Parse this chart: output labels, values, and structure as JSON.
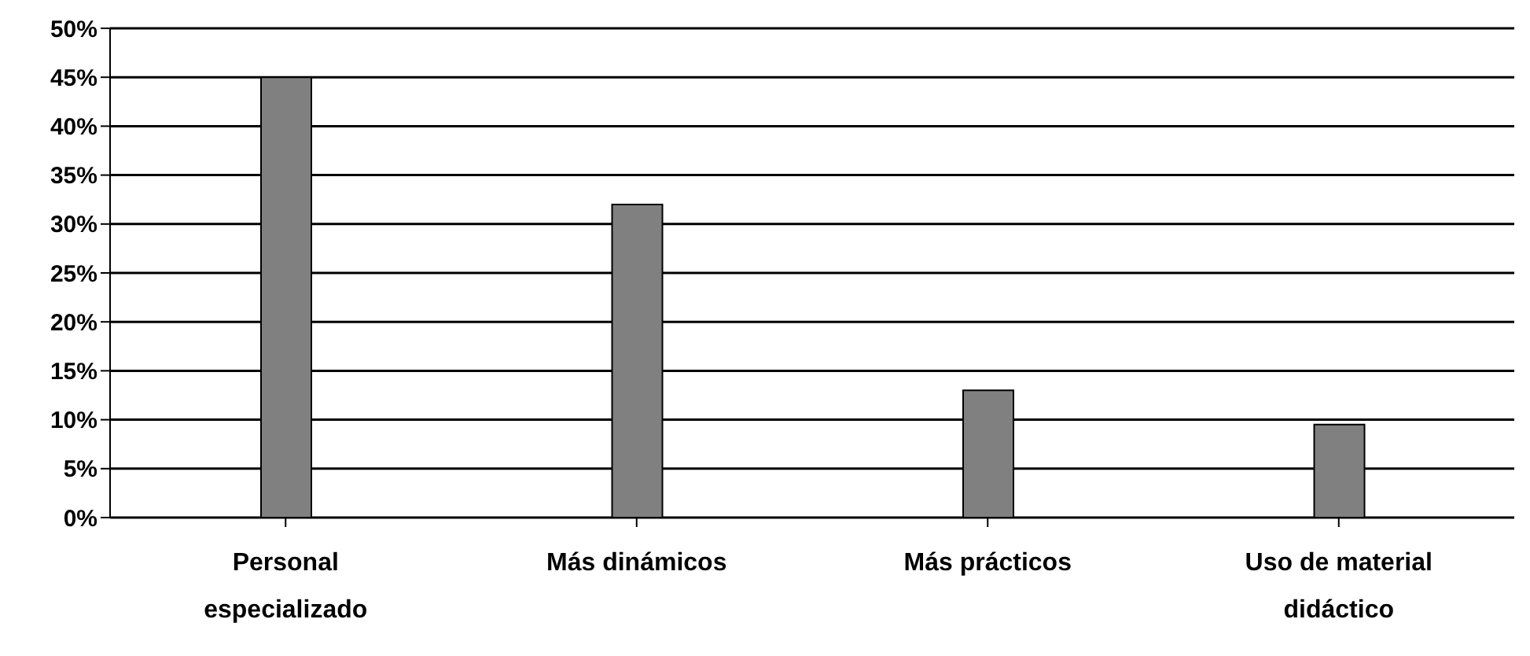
{
  "chart_data": {
    "type": "bar",
    "categories": [
      "Personal especializado",
      "Más dinámicos",
      "Más prácticos",
      "Uso de material didáctico"
    ],
    "values": [
      45,
      32,
      13,
      9.5
    ],
    "color": "#808080",
    "ylim": [
      0,
      50
    ],
    "yticks": [
      {
        "value": 0,
        "label": "0%"
      },
      {
        "value": 5,
        "label": "5%"
      },
      {
        "value": 10,
        "label": "10%"
      },
      {
        "value": 15,
        "label": "15%"
      },
      {
        "value": 20,
        "label": "20%"
      },
      {
        "value": 25,
        "label": "25%"
      },
      {
        "value": 30,
        "label": "30%"
      },
      {
        "value": 35,
        "label": "35%"
      },
      {
        "value": 40,
        "label": "40%"
      },
      {
        "value": 45,
        "label": "45%"
      },
      {
        "value": 50,
        "label": "50%"
      }
    ],
    "grid": "y",
    "legend": false
  }
}
